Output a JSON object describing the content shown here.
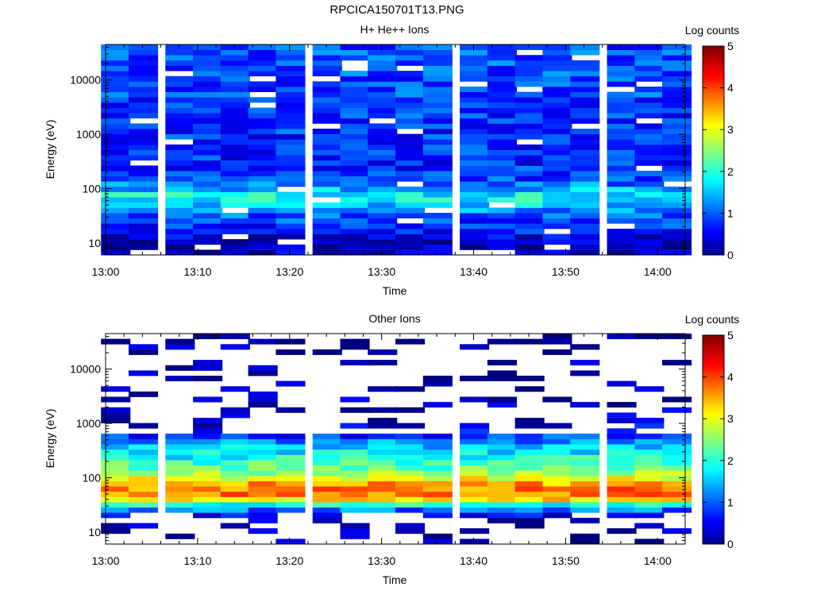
{
  "figure_title": "RPCICA150701T13.PNG",
  "chart_data": [
    {
      "type": "heatmap",
      "title": "H+ He++ Ions",
      "xlabel": "Time",
      "ylabel": "Energy (eV)",
      "x_ticks": [
        "13:00",
        "13:10",
        "13:20",
        "13:30",
        "13:40",
        "13:50",
        "14:00"
      ],
      "xlim": [
        "13:00",
        "14:03"
      ],
      "y_scale": "log",
      "y_ticks": [
        10,
        100,
        1000,
        10000
      ],
      "y_tick_labels": [
        "10",
        "100",
        "1000",
        "10000"
      ],
      "ylim": [
        6,
        45000
      ],
      "time_bins": [
        "13:01",
        "13:04",
        "13:08",
        "13:11",
        "13:14",
        "13:17",
        "13:20",
        "13:24",
        "13:27",
        "13:30",
        "13:33",
        "13:36",
        "13:40",
        "13:43",
        "13:46",
        "13:49",
        "13:52",
        "13:56",
        "13:59",
        "14:02"
      ],
      "energy_profile_log_counts": [
        {
          "energy_ev": 7,
          "log_counts": 0.35
        },
        {
          "energy_ev": 10,
          "log_counts": 0.25
        },
        {
          "energy_ev": 14,
          "log_counts": 0.55
        },
        {
          "energy_ev": 20,
          "log_counts": 0.85
        },
        {
          "energy_ev": 30,
          "log_counts": 1.0
        },
        {
          "energy_ev": 40,
          "log_counts": 1.3
        },
        {
          "energy_ev": 55,
          "log_counts": 1.8
        },
        {
          "energy_ev": 75,
          "log_counts": 1.9
        },
        {
          "energy_ev": 100,
          "log_counts": 1.5
        },
        {
          "energy_ev": 150,
          "log_counts": 0.9
        },
        {
          "energy_ev": 300,
          "log_counts": 0.8
        },
        {
          "energy_ev": 1000,
          "log_counts": 0.85
        },
        {
          "energy_ev": 3000,
          "log_counts": 0.9
        },
        {
          "energy_ev": 10000,
          "log_counts": 1.0
        },
        {
          "energy_ev": 40000,
          "log_counts": 1.0
        }
      ],
      "colorbar": {
        "label": "Log counts",
        "ticks": [
          "0",
          "1",
          "2",
          "3",
          "4",
          "5"
        ],
        "range": [
          0,
          5
        ],
        "colormap": "jet"
      }
    },
    {
      "type": "heatmap",
      "title": "Other Ions",
      "xlabel": "Time",
      "ylabel": "Energy (eV)",
      "x_ticks": [
        "13:00",
        "13:10",
        "13:20",
        "13:30",
        "13:40",
        "13:50",
        "14:00"
      ],
      "xlim": [
        "13:00",
        "14:03"
      ],
      "y_scale": "log",
      "y_ticks": [
        10,
        100,
        1000,
        10000
      ],
      "y_tick_labels": [
        "10",
        "100",
        "1000",
        "10000"
      ],
      "ylim": [
        6,
        45000
      ],
      "time_bins": [
        "13:01",
        "13:04",
        "13:08",
        "13:11",
        "13:14",
        "13:17",
        "13:20",
        "13:24",
        "13:27",
        "13:30",
        "13:33",
        "13:36",
        "13:40",
        "13:43",
        "13:46",
        "13:49",
        "13:52",
        "13:56",
        "13:59",
        "14:02"
      ],
      "energy_profile_log_counts": [
        {
          "energy_ev": 7,
          "log_counts": 0.15
        },
        {
          "energy_ev": 10,
          "log_counts": 0.15
        },
        {
          "energy_ev": 16,
          "log_counts": 0.25
        },
        {
          "energy_ev": 22,
          "log_counts": 0.7
        },
        {
          "energy_ev": 30,
          "log_counts": 1.7
        },
        {
          "energy_ev": 40,
          "log_counts": 3.3
        },
        {
          "energy_ev": 55,
          "log_counts": 3.9
        },
        {
          "energy_ev": 80,
          "log_counts": 3.5
        },
        {
          "energy_ev": 120,
          "log_counts": 2.6
        },
        {
          "energy_ev": 200,
          "log_counts": 2.1
        },
        {
          "energy_ev": 400,
          "log_counts": 1.5
        },
        {
          "energy_ev": 700,
          "log_counts": 0.6
        },
        {
          "energy_ev": 1500,
          "log_counts": 0.3
        },
        {
          "energy_ev": 10000,
          "log_counts": 0.1
        }
      ],
      "colorbar": {
        "label": "Log counts",
        "ticks": [
          "0",
          "1",
          "2",
          "3",
          "4",
          "5"
        ],
        "range": [
          0,
          5
        ],
        "colormap": "jet"
      }
    }
  ]
}
